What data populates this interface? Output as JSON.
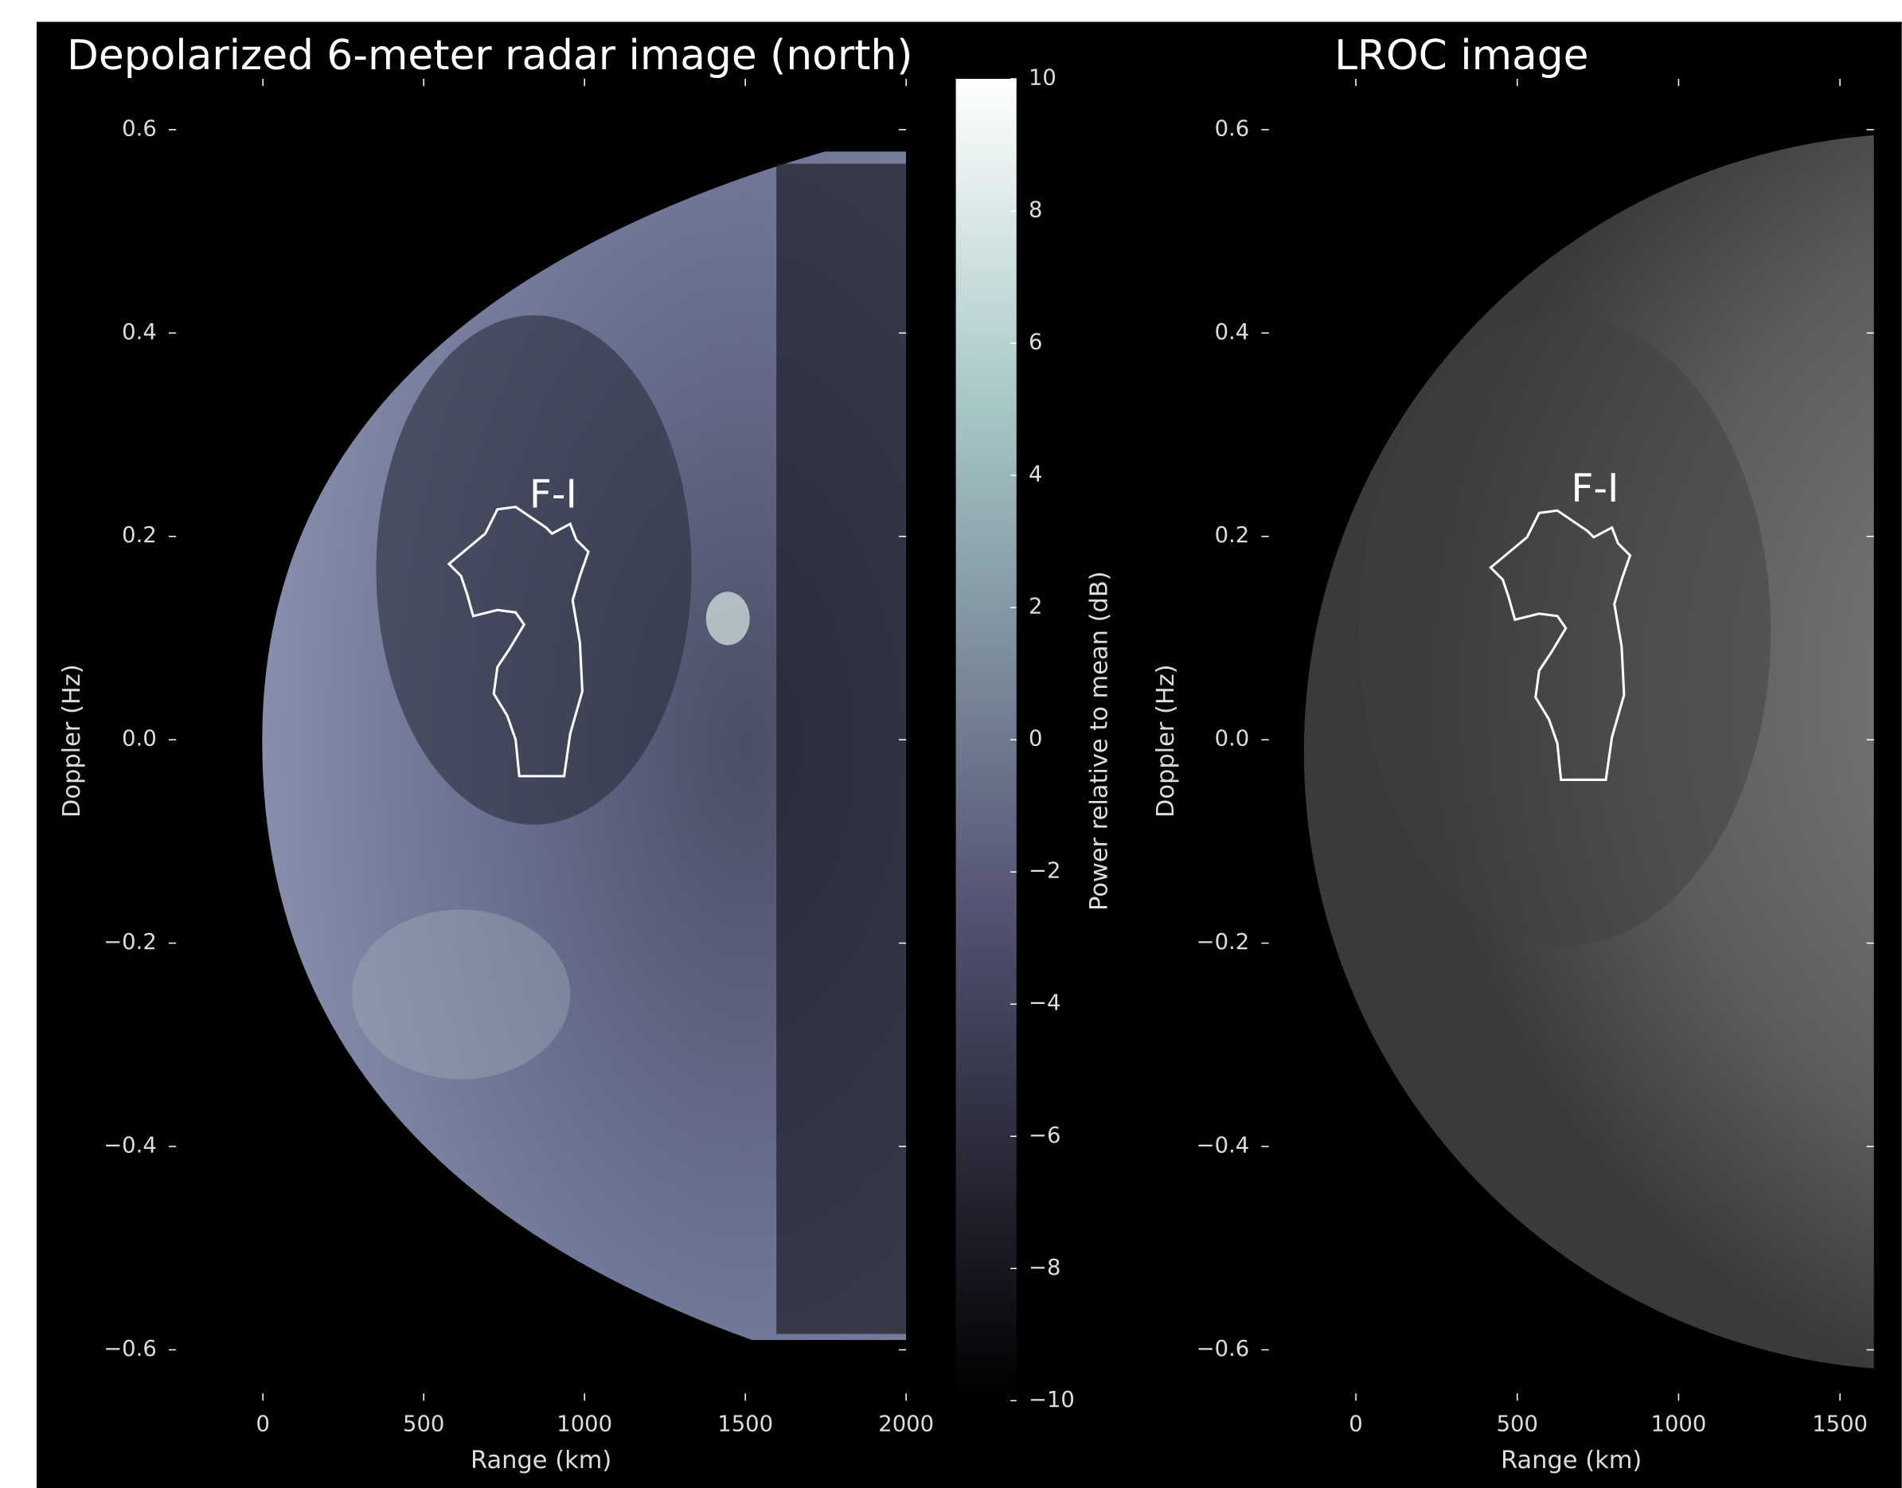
{
  "chart_data": [
    {
      "type": "image",
      "title": "Depolarized 6-meter radar image (north)",
      "xlabel": "Range (km)",
      "ylabel": "Doppler (Hz)",
      "annotation": "F-I",
      "xlim": [
        -270,
        2000
      ],
      "ylim": [
        -0.65,
        0.65
      ],
      "xticks": [
        0,
        500,
        1000,
        1500,
        2000
      ],
      "yticks": [
        {
          "value": -0.6,
          "label": "−0.6"
        },
        {
          "value": -0.4,
          "label": "−0.4"
        },
        {
          "value": -0.2,
          "label": "−0.2"
        },
        {
          "value": 0,
          "label": "0.0"
        },
        0.2,
        0.4,
        0.6
      ],
      "colormap": "bone",
      "colorbar": {
        "label": "Power relative to mean (dB)",
        "lim": [
          -10,
          10
        ],
        "ticks": [
          {
            "value": -10,
            "label": "−10"
          },
          {
            "value": -8,
            "label": "−8"
          },
          {
            "value": -6,
            "label": "−6"
          },
          {
            "value": -4,
            "label": "−4"
          },
          {
            "value": -2,
            "label": "−2"
          },
          0,
          2,
          4,
          6,
          8,
          10
        ]
      }
    },
    {
      "type": "image",
      "title": "LROC image",
      "xlabel": "Range (km)",
      "ylabel": "Doppler (Hz)",
      "annotation": "F-I",
      "xlim": [
        -270,
        1605
      ],
      "ylim": [
        -0.65,
        0.65
      ],
      "xticks": [
        0,
        500,
        1000,
        1500
      ],
      "yticks": [
        {
          "value": -0.6,
          "label": "−0.6"
        },
        {
          "value": -0.4,
          "label": "−0.4"
        },
        {
          "value": -0.2,
          "label": "−0.2"
        },
        {
          "value": 0,
          "label": "0.0"
        },
        0.2,
        0.4,
        0.6
      ],
      "colormap": "gray"
    }
  ]
}
